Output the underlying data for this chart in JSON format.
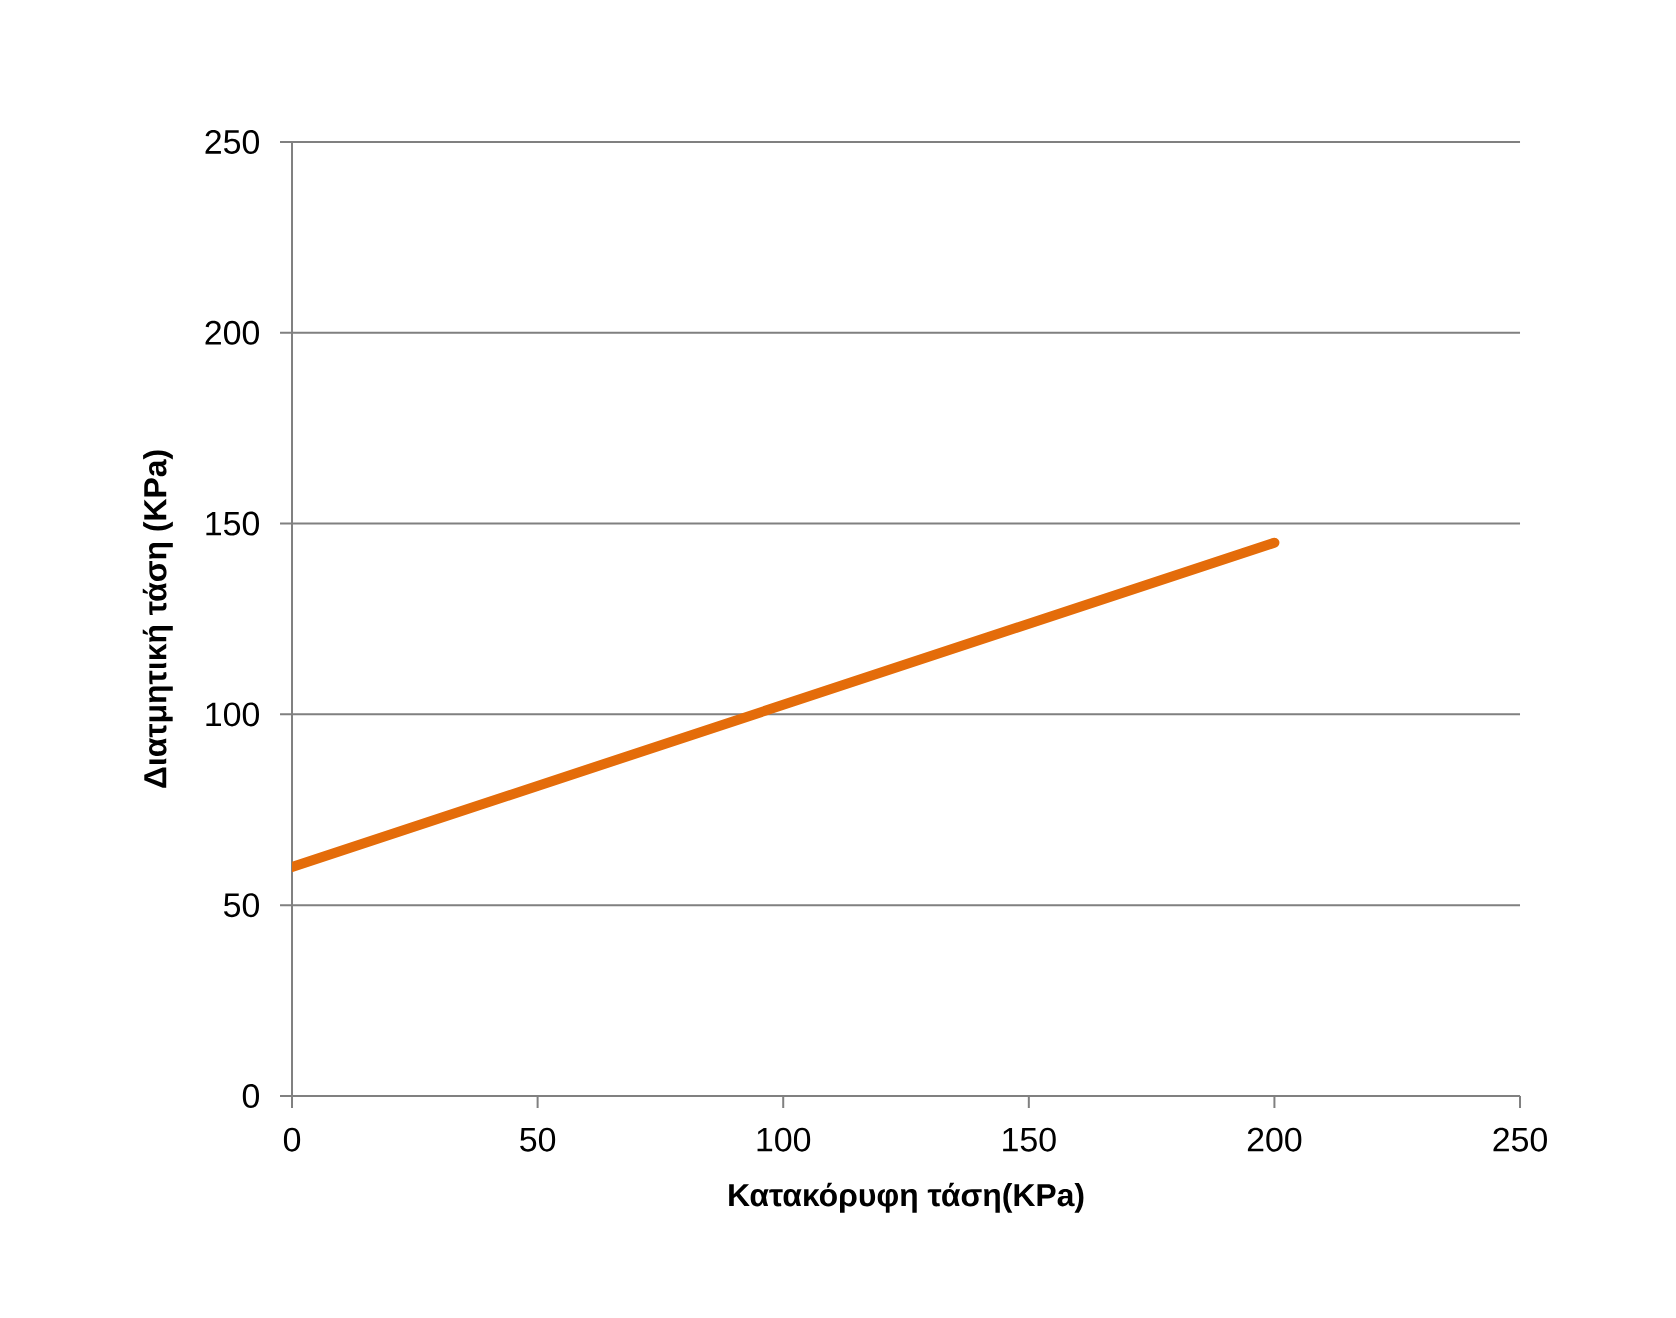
{
  "chart_data": {
    "type": "line",
    "xlabel": "Κατακόρυφη τάση(KPa)",
    "ylabel": "Διατμητική τάση (KPa)",
    "x": [
      0,
      200
    ],
    "series": [
      {
        "color": "#e46c0a",
        "values": [
          60,
          145
        ]
      }
    ],
    "xlim": [
      0,
      250
    ],
    "ylim": [
      0,
      250
    ],
    "xticks": [
      0,
      50,
      100,
      150,
      200,
      250
    ],
    "yticks": [
      0,
      50,
      100,
      150,
      200,
      250
    ],
    "grid": "y",
    "marker": "none",
    "line_style": "solid"
  }
}
